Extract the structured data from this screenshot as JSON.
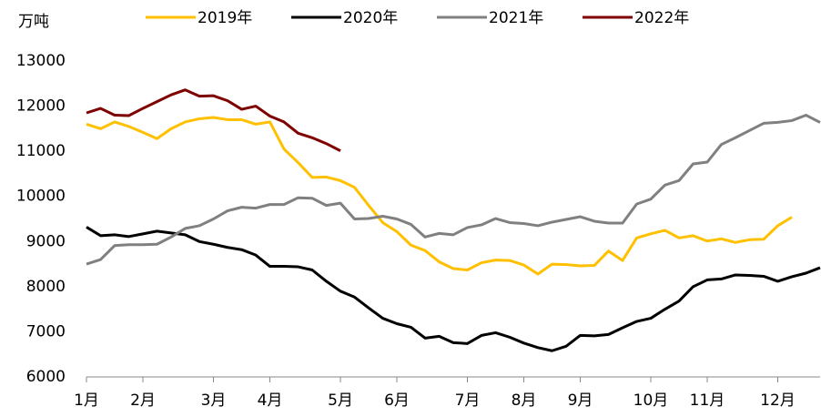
{
  "chart_data": {
    "type": "line",
    "y_label": "万吨",
    "categories": [
      "1月",
      null,
      null,
      null,
      "2月",
      null,
      null,
      null,
      null,
      "3月",
      null,
      null,
      null,
      "4月",
      null,
      null,
      null,
      null,
      "5月",
      null,
      null,
      null,
      "6月",
      null,
      null,
      null,
      null,
      "7月",
      null,
      null,
      null,
      "8月",
      null,
      null,
      null,
      "9月",
      null,
      null,
      null,
      null,
      "10月",
      null,
      null,
      null,
      "11月",
      null,
      null,
      null,
      null,
      "12月",
      null,
      null,
      null
    ],
    "series": [
      {
        "name": "2019年",
        "color": "#ffc000",
        "values": [
          11600,
          11500,
          11650,
          11550,
          11420,
          11280,
          11500,
          11650,
          11720,
          11750,
          11700,
          11700,
          11600,
          11650,
          11050,
          10750,
          10420,
          10430,
          10350,
          10200,
          9800,
          9420,
          9220,
          8920,
          8800,
          8550,
          8400,
          8370,
          8530,
          8590,
          8580,
          8480,
          8280,
          8500,
          8490,
          8460,
          8470,
          8790,
          8580,
          9080,
          9170,
          9250,
          9080,
          9130,
          9010,
          9060,
          8980,
          9040,
          9050,
          9350,
          9540,
          null,
          null
        ]
      },
      {
        "name": "2020年",
        "color": "#000000",
        "values": [
          9320,
          9130,
          9150,
          9110,
          9170,
          9230,
          9190,
          9150,
          9000,
          8940,
          8870,
          8820,
          8700,
          8450,
          8450,
          8440,
          8370,
          8120,
          7900,
          7770,
          7530,
          7300,
          7180,
          7100,
          6860,
          6900,
          6760,
          6740,
          6920,
          6980,
          6880,
          6750,
          6650,
          6580,
          6680,
          6920,
          6910,
          6940,
          7090,
          7230,
          7300,
          7500,
          7680,
          8000,
          8150,
          8170,
          8260,
          8250,
          8230,
          8120,
          8220,
          8300,
          8420
        ]
      },
      {
        "name": "2021年",
        "color": "#808080",
        "values": [
          8500,
          8600,
          8910,
          8930,
          8930,
          8940,
          9100,
          9290,
          9350,
          9500,
          9680,
          9760,
          9740,
          9820,
          9820,
          9970,
          9960,
          9800,
          9850,
          9500,
          9510,
          9560,
          9500,
          9380,
          9100,
          9180,
          9150,
          9310,
          9370,
          9510,
          9420,
          9400,
          9350,
          9430,
          9490,
          9550,
          9450,
          9410,
          9410,
          9830,
          9940,
          10250,
          10350,
          10720,
          10760,
          11150,
          11300,
          11460,
          11620,
          11640,
          11680,
          11800,
          11640
        ]
      },
      {
        "name": "2022年",
        "color": "#7f0000",
        "values": [
          11850,
          11950,
          11800,
          11790,
          11950,
          12100,
          12250,
          12360,
          12220,
          12230,
          12120,
          11930,
          12000,
          11780,
          11650,
          11400,
          11300,
          11170,
          11010,
          null,
          null,
          null,
          null,
          null,
          null,
          null,
          null,
          null,
          null,
          null,
          null,
          null,
          null,
          null,
          null,
          null,
          null,
          null,
          null,
          null,
          null,
          null,
          null,
          null,
          null,
          null,
          null,
          null,
          null,
          null,
          null,
          null,
          null
        ]
      }
    ],
    "ylim": [
      6000,
      13000
    ],
    "yticks": [
      6000,
      7000,
      8000,
      9000,
      10000,
      11000,
      12000,
      13000
    ],
    "legend": "top"
  }
}
